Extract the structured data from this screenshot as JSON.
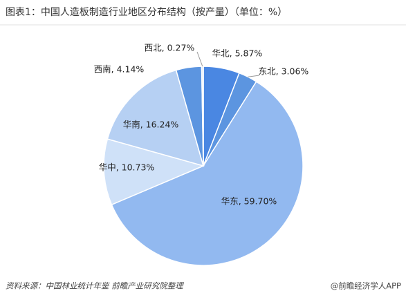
{
  "chart_data": {
    "type": "pie",
    "title": "图表1：中国人造板制造行业地区分布结构（按产量）（单位：%）",
    "values": [
      5.87,
      3.06,
      59.7,
      10.73,
      16.24,
      4.14,
      0.27
    ],
    "value_labels": [
      "华北, 5.87%",
      "东北, 3.06%",
      "华东, 59.70%",
      "华中, 10.73%",
      "华南, 16.24%",
      "西南, 4.14%",
      "西北, 0.27%"
    ],
    "colors": [
      "#4a87e2",
      "#5c95e0",
      "#92b9f0",
      "#cfe1f8",
      "#b6d0f3",
      "#5c95e0",
      "#dde9f8"
    ],
    "source": "资料来源：中国林业统计年鉴 前瞻产业研究院整理",
    "credit": "@前瞻经济学人APP"
  }
}
